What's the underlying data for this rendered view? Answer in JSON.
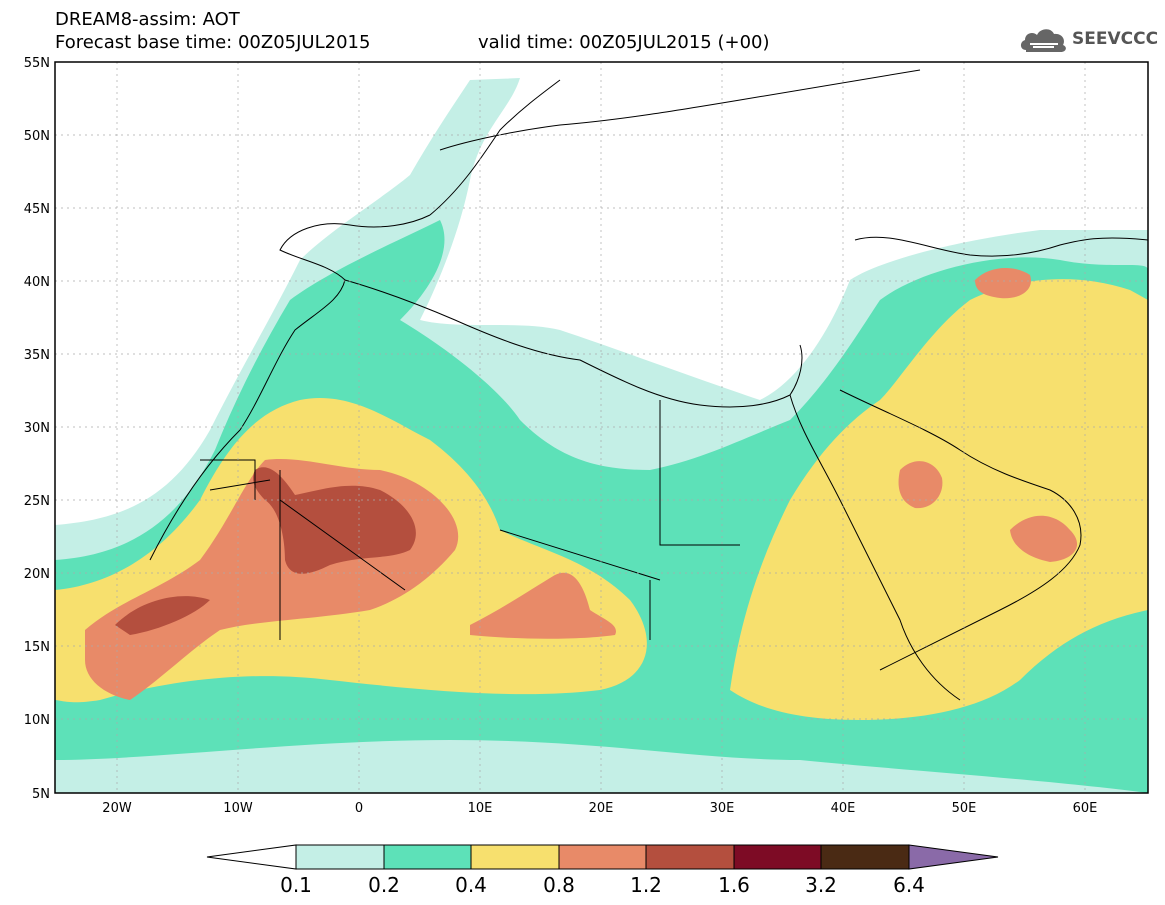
{
  "header": {
    "title": "DREAM8-assim: AOT",
    "base_time": "Forecast base time: 00Z05JUL2015",
    "valid_time": "valid time: 00Z05JUL2015 (+00)"
  },
  "logo": {
    "text": "SEEVCCC",
    "icon": "cloud-icon"
  },
  "axes": {
    "lat_ticks": [
      "55N",
      "50N",
      "45N",
      "40N",
      "35N",
      "30N",
      "25N",
      "20N",
      "15N",
      "10N",
      "5N"
    ],
    "lon_ticks": [
      "20W",
      "10W",
      "0",
      "10E",
      "20E",
      "30E",
      "40E",
      "50E",
      "60E"
    ]
  },
  "colorbar": {
    "labels": [
      "0.1",
      "0.2",
      "0.4",
      "0.8",
      "1.2",
      "1.6",
      "3.2",
      "6.4"
    ],
    "colors": [
      "#ffffff",
      "#c4efe6",
      "#5de1b8",
      "#f7e06e",
      "#e88a68",
      "#b44f3e",
      "#7d0b25",
      "#4a2a14",
      "#8a6aa8"
    ]
  },
  "palette": {
    "c1": "#c4efe6",
    "c2": "#5de1b8",
    "c3": "#f7e06e",
    "c4": "#e88a68",
    "c5": "#b44f3e"
  }
}
